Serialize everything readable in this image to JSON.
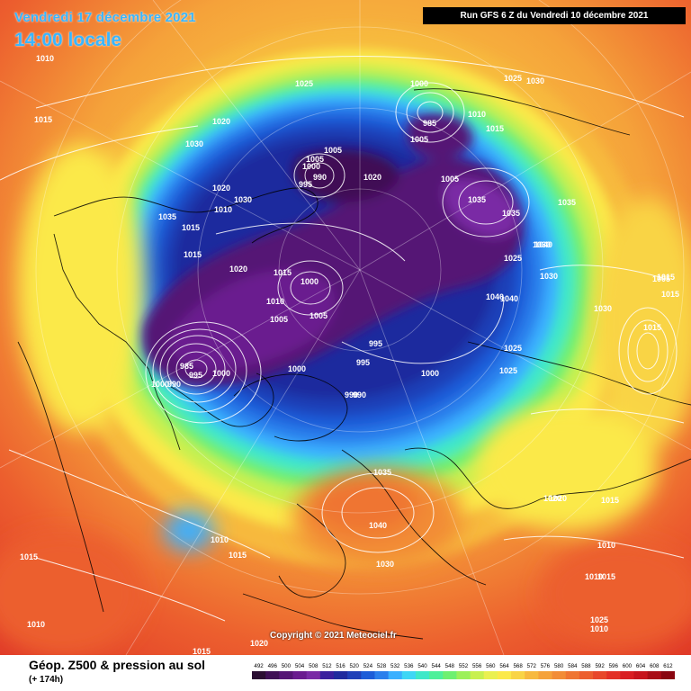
{
  "header": {
    "date": "Vendredi 17 décembre 2021",
    "time": "14:00 locale",
    "run": "Run GFS 6 Z du Vendredi 10 décembre 2021"
  },
  "footer": {
    "copyright": "Copyright © 2021 Meteociel.fr",
    "title": "Géop. Z500 & pression au sol",
    "lead": "(+ 174h)"
  },
  "legend": {
    "values": [
      "492",
      "496",
      "500",
      "504",
      "508",
      "512",
      "516",
      "520",
      "524",
      "528",
      "532",
      "536",
      "540",
      "544",
      "548",
      "552",
      "556",
      "560",
      "564",
      "568",
      "572",
      "576",
      "580",
      "584",
      "588",
      "592",
      "596",
      "600",
      "604",
      "608",
      "612"
    ],
    "colors": [
      "#2b0e32",
      "#3f0f55",
      "#551575",
      "#6a1b8f",
      "#7a2aa5",
      "#3a1f9e",
      "#1f2a9e",
      "#1f3fb8",
      "#1c5cd8",
      "#2b7fec",
      "#3ab0ff",
      "#3fd6f5",
      "#3fe8c8",
      "#4ef09a",
      "#6ef070",
      "#9cf05a",
      "#c8f050",
      "#eaf050",
      "#fbe94a",
      "#f9d445",
      "#f7b93e",
      "#f5a23a",
      "#f28c36",
      "#ef7532",
      "#ec5e2e",
      "#e8472a",
      "#e33026",
      "#d91e22",
      "#c7141c",
      "#a90d16",
      "#8a0610"
    ]
  },
  "pressure_labels": [
    "1010",
    "1015",
    "1020",
    "1030",
    "1025",
    "1000",
    "1005",
    "995",
    "990",
    "985",
    "1035",
    "1040",
    "1010",
    "1015",
    "1020",
    "1025",
    "1030",
    "1035",
    "1040",
    "1005",
    "1000",
    "995",
    "990",
    "1000",
    "1005",
    "1010",
    "1015",
    "1025",
    "1030",
    "1040",
    "1020",
    "1015",
    "1010",
    "1005",
    "1000",
    "1035",
    "1030",
    "1025",
    "1020",
    "1015",
    "1010",
    "1000",
    "995",
    "990",
    "1005",
    "1000",
    "1035",
    "1040",
    "1030",
    "1010",
    "1015",
    "1015",
    "1010",
    "1015",
    "1020",
    "1025",
    "1010",
    "1005",
    "1015",
    "1030",
    "1025",
    "1015",
    "1010",
    "1015",
    "1015",
    "1020",
    "1030",
    "1035",
    "1015",
    "1020",
    "1005",
    "1000",
    "985",
    "990",
    "995"
  ]
}
